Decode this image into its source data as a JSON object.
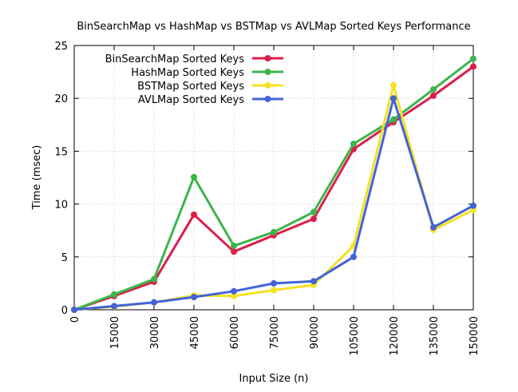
{
  "chart_data": {
    "type": "line",
    "title": "BinSearchMap vs HashMap vs BSTMap vs AVLMap Sorted Keys Performance",
    "xlabel": "Input Size (n)",
    "ylabel": "Time (msec)",
    "x": [
      0,
      15000,
      30000,
      45000,
      60000,
      75000,
      90000,
      105000,
      120000,
      135000,
      150000
    ],
    "x_tick_labels": [
      "0",
      "15000",
      "30000",
      "45000",
      "60000",
      "75000",
      "90000",
      "105000",
      "120000",
      "135000",
      "150000"
    ],
    "y_ticks": [
      0,
      5,
      10,
      15,
      20,
      25
    ],
    "y_tick_labels": [
      "0",
      "5",
      "10",
      "15",
      "20",
      "25"
    ],
    "xlim": [
      0,
      150000
    ],
    "ylim": [
      0,
      25
    ],
    "grid": true,
    "legend_position": "top-left",
    "series": [
      {
        "name": "BinSearchMap Sorted Keys",
        "color": "#dc1e4a",
        "values": [
          0,
          1.3,
          2.65,
          9.0,
          5.5,
          7.05,
          8.6,
          15.2,
          17.75,
          20.25,
          23.0
        ]
      },
      {
        "name": "HashMap Sorted Keys",
        "color": "#3cb44b",
        "values": [
          0,
          1.45,
          2.9,
          12.55,
          6.05,
          7.35,
          9.25,
          15.7,
          18.0,
          20.85,
          23.75
        ]
      },
      {
        "name": "BSTMap Sorted Keys",
        "color": "#f5e120",
        "values": [
          0,
          0.3,
          0.7,
          1.35,
          1.3,
          1.85,
          2.35,
          6.05,
          21.25,
          7.55,
          9.45
        ]
      },
      {
        "name": "AVLMap Sorted Keys",
        "color": "#4363d8",
        "values": [
          0,
          0.35,
          0.7,
          1.2,
          1.75,
          2.5,
          2.7,
          5.0,
          20.0,
          7.8,
          9.85
        ]
      }
    ]
  }
}
